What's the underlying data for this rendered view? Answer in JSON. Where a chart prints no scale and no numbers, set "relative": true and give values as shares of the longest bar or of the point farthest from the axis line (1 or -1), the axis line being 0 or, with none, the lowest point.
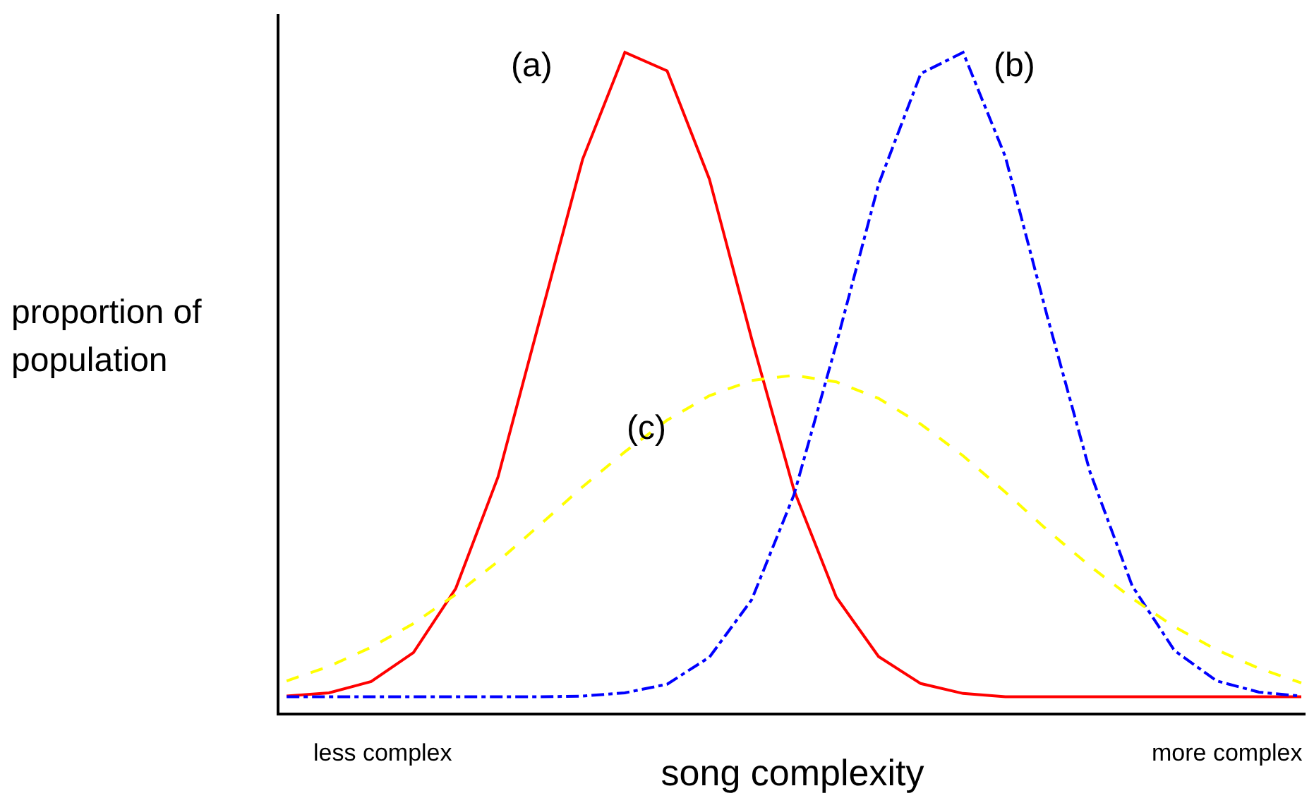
{
  "chart_data": {
    "type": "line",
    "relative": true,
    "xlabel": "song complexity",
    "ylabel": "proportion of population",
    "categories": [
      null,
      null,
      null,
      null,
      null,
      null,
      null,
      null,
      null,
      null,
      null,
      null,
      null,
      null,
      null,
      null,
      null,
      null,
      null,
      null,
      null,
      null,
      null,
      null,
      null
    ],
    "series": [
      {
        "name": "(a)",
        "color": "#ff0000",
        "line_style": "solid",
        "values": [
          0.025,
          0.03,
          0.047,
          0.091,
          0.188,
          0.357,
          0.598,
          0.838,
          1,
          0.972,
          0.808,
          0.566,
          0.337,
          0.175,
          0.085,
          0.044,
          0.029,
          0.024,
          0.024,
          0.024,
          0.024,
          0.024,
          0.024,
          0.024,
          0.024
        ]
      },
      {
        "name": "(b)",
        "color": "#0000ff",
        "line_style": "dashdot",
        "values": [
          0.024,
          0.024,
          0.024,
          0.024,
          0.024,
          0.024,
          0.024,
          0.025,
          0.03,
          0.043,
          0.084,
          0.171,
          0.33,
          0.558,
          0.8,
          0.968,
          1,
          0.842,
          0.598,
          0.365,
          0.192,
          0.094,
          0.048,
          0.031,
          0.025
        ]
      },
      {
        "name": "(c)",
        "color": "#ffff00",
        "line_style": "dashed",
        "values": [
          0.048,
          0.07,
          0.099,
          0.135,
          0.179,
          0.229,
          0.285,
          0.342,
          0.395,
          0.443,
          0.48,
          0.503,
          0.511,
          0.501,
          0.476,
          0.437,
          0.389,
          0.334,
          0.276,
          0.222,
          0.173,
          0.13,
          0.095,
          0.067,
          0.045
        ]
      }
    ],
    "annotations": [
      "less complex",
      "more complex"
    ],
    "grid": false,
    "legend": false,
    "marker": "none"
  }
}
